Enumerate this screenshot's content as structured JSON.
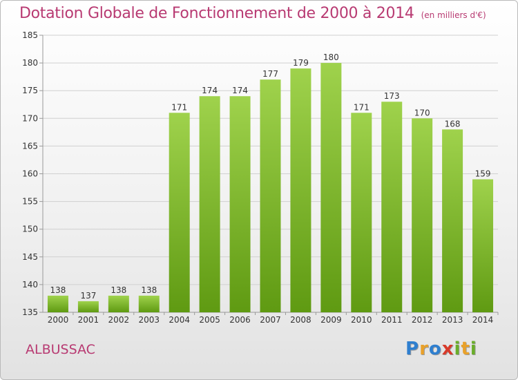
{
  "title": "Dotation Globale de Fonctionnement de 2000 à 2014",
  "subtitle": "(en milliers d'€)",
  "commune": "ALBUSSAC",
  "logo": {
    "text": "Proxiti",
    "letters": [
      {
        "char": "P",
        "color": "#2f7fcf"
      },
      {
        "char": "r",
        "color": "#e9a12a"
      },
      {
        "char": "o",
        "color": "#2f7fcf"
      },
      {
        "char": "x",
        "color": "#d83a2a"
      },
      {
        "char": "i",
        "color": "#6aae2a"
      },
      {
        "char": "t",
        "color": "#e9a12a"
      },
      {
        "char": "i",
        "color": "#6aae2a"
      }
    ]
  },
  "colors": {
    "title": "#b83a72",
    "bar_top": "#9fd24c",
    "bar_bottom": "#5f9a12",
    "grid": "#d0d0d0",
    "axis_text": "#333333"
  },
  "chart_data": {
    "type": "bar",
    "categories": [
      "2000",
      "2001",
      "2002",
      "2003",
      "2004",
      "2005",
      "2006",
      "2007",
      "2008",
      "2009",
      "2010",
      "2011",
      "2012",
      "2013",
      "2014"
    ],
    "values": [
      138,
      137,
      138,
      138,
      171,
      174,
      174,
      177,
      179,
      180,
      171,
      173,
      170,
      168,
      159
    ],
    "ylim": [
      135,
      185
    ],
    "yticks": [
      135,
      140,
      145,
      150,
      155,
      160,
      165,
      170,
      175,
      180,
      185
    ],
    "grid": true,
    "data_labels": true
  }
}
